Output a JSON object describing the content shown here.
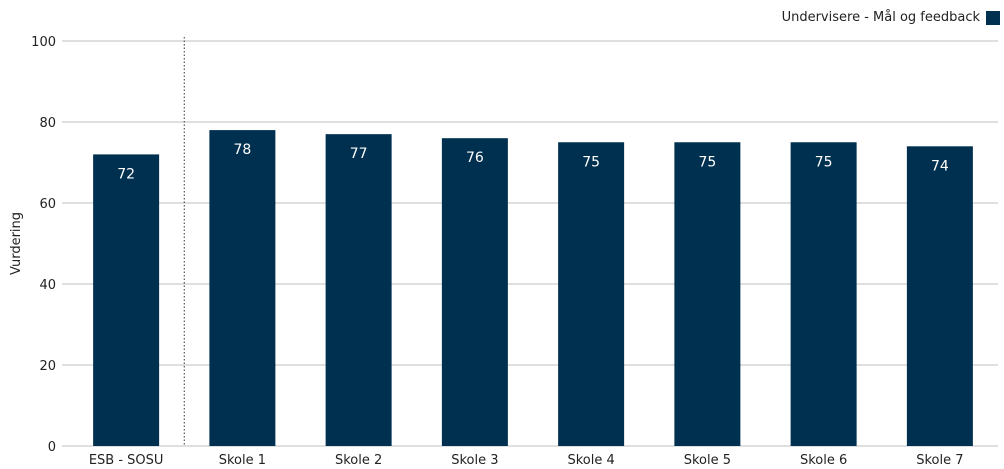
{
  "chart_data": {
    "type": "bar",
    "categories": [
      "ESB - SOSU",
      "Skole 1",
      "Skole 2",
      "Skole 3",
      "Skole 4",
      "Skole 5",
      "Skole 6",
      "Skole 7"
    ],
    "series": [
      {
        "name": "Undervisere - Mål og feedback",
        "values": [
          72,
          78,
          77,
          76,
          75,
          75,
          75,
          74
        ],
        "data_labels": [
          "72",
          "78",
          "77",
          "76",
          "75",
          "75",
          "75",
          "74"
        ],
        "color": "#00304f"
      }
    ],
    "ylabel": "Vurdering",
    "ylim": [
      0,
      100
    ],
    "yticks": [
      "0",
      "20",
      "40",
      "60",
      "80",
      "100"
    ],
    "grid": true,
    "legend": "top-right",
    "separator_after_category": "ESB - SOSU",
    "label_color": "#ffffff",
    "grid_color": "#bfbfbf"
  }
}
